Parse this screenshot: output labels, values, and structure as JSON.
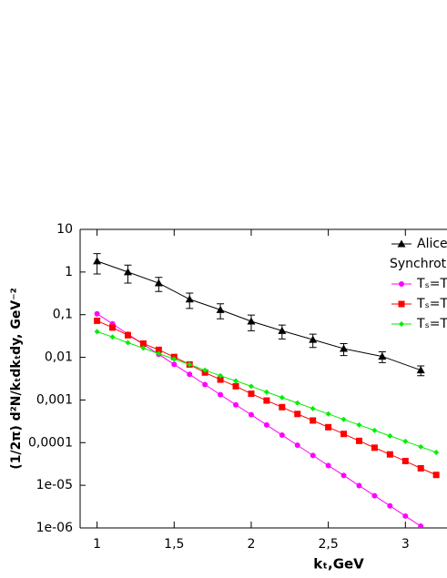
{
  "chart_data": {
    "type": "line",
    "ylabel": "(1/2π) d²N/kₜdkₜdy, GeV⁻²",
    "xlabel": "kₜ,GeV",
    "log_y": true,
    "xlim": [
      0.89,
      3.27
    ],
    "ylim": [
      1e-06,
      10
    ],
    "xticks": [
      1,
      {
        "value": 1.5,
        "label": "1,5"
      },
      2,
      {
        "value": 2.5,
        "label": "2,5"
      },
      3
    ],
    "yticks": [
      {
        "value": 1e-06,
        "label": "1e-06"
      },
      {
        "value": 1e-05,
        "label": "1e-05"
      },
      {
        "value": 0.0001,
        "label": "0,0001"
      },
      {
        "value": 0.001,
        "label": "0,001"
      },
      {
        "value": 0.01,
        "label": "0,01"
      },
      {
        "value": 0.1,
        "label": "0,1"
      },
      1,
      10
    ],
    "legend": "upper right",
    "legend_title": "Synchrot",
    "series": [
      {
        "name": "Alice",
        "color": "#000000",
        "marker": "triangle",
        "x": [
          1.0,
          1.2,
          1.4,
          1.6,
          1.8,
          2.0,
          2.2,
          2.4,
          2.6,
          2.85,
          3.1
        ],
        "values": [
          1.8,
          1.0,
          0.55,
          0.23,
          0.13,
          0.07,
          0.042,
          0.026,
          0.016,
          0.0105,
          0.005
        ],
        "errors": [
          0.9,
          0.45,
          0.2,
          0.09,
          0.05,
          0.028,
          0.015,
          0.009,
          0.005,
          0.003,
          0.0013
        ]
      },
      {
        "name": "Tₛ=T",
        "color": "#ff00ff",
        "marker": "circle",
        "x": [
          1.0,
          1.1,
          1.2,
          1.3,
          1.4,
          1.5,
          1.6,
          1.7,
          1.8,
          1.9,
          2.0,
          2.1,
          2.2,
          2.3,
          2.4,
          2.5,
          2.6,
          2.7,
          2.8,
          2.9,
          3.0,
          3.1
        ],
        "values": [
          0.105,
          0.061,
          0.035,
          0.02,
          0.0118,
          0.0068,
          0.004,
          0.0023,
          0.00133,
          0.00077,
          0.00045,
          0.00026,
          0.00015,
          8.7e-05,
          5e-05,
          2.9e-05,
          1.7e-05,
          9.8e-06,
          5.7e-06,
          3.3e-06,
          1.9e-06,
          1.1e-06
        ]
      },
      {
        "name": "Tₛ=T",
        "color": "#ff0000",
        "marker": "square",
        "x": [
          1.0,
          1.1,
          1.2,
          1.3,
          1.4,
          1.5,
          1.6,
          1.7,
          1.8,
          1.9,
          2.0,
          2.1,
          2.2,
          2.3,
          2.4,
          2.5,
          2.6,
          2.7,
          2.8,
          2.9,
          3.0,
          3.1,
          3.2
        ],
        "values": [
          0.072,
          0.05,
          0.033,
          0.021,
          0.015,
          0.0102,
          0.0068,
          0.0044,
          0.003,
          0.0021,
          0.0014,
          0.00097,
          0.00068,
          0.00047,
          0.00033,
          0.00023,
          0.00016,
          0.00011,
          7.6e-05,
          5.3e-05,
          3.7e-05,
          2.5e-05,
          1.75e-05
        ]
      },
      {
        "name": "Tₛ=T",
        "color": "#00ee00",
        "marker": "diamond",
        "x": [
          1.0,
          1.1,
          1.2,
          1.3,
          1.4,
          1.5,
          1.6,
          1.7,
          1.8,
          1.9,
          2.0,
          2.1,
          2.2,
          2.3,
          2.4,
          2.5,
          2.6,
          2.7,
          2.8,
          2.9,
          3.0,
          3.1,
          3.2
        ],
        "values": [
          0.04,
          0.03,
          0.022,
          0.0164,
          0.0122,
          0.0091,
          0.0068,
          0.005,
          0.0037,
          0.0028,
          0.0021,
          0.00153,
          0.00114,
          0.00085,
          0.00063,
          0.00047,
          0.00035,
          0.00026,
          0.000193,
          0.000144,
          0.000107,
          8e-05,
          5.9e-05
        ]
      }
    ]
  }
}
